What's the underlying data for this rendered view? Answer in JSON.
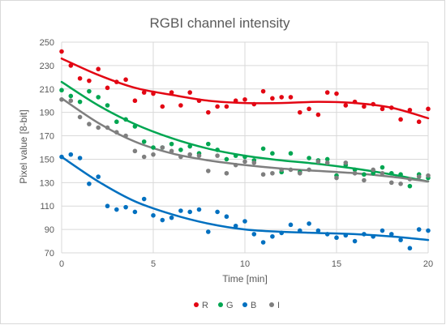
{
  "chart_data": {
    "type": "scatter",
    "title": "RGBI channel intensity",
    "xlabel": "Time [min]",
    "ylabel": "Pixel value [8-bit]",
    "xlim": [
      0,
      20
    ],
    "ylim": [
      70,
      250
    ],
    "xticks": [
      0,
      5,
      10,
      15,
      20
    ],
    "yticks": [
      70,
      90,
      110,
      130,
      150,
      170,
      190,
      210,
      230,
      250
    ],
    "grid": true,
    "legend": "bottom",
    "series": [
      {
        "name": "R",
        "color": "#e30613",
        "points": [
          [
            0,
            242
          ],
          [
            0.5,
            230
          ],
          [
            1,
            219
          ],
          [
            1.5,
            217
          ],
          [
            2,
            227
          ],
          [
            2.5,
            211
          ],
          [
            3,
            216
          ],
          [
            3.5,
            218
          ],
          [
            4,
            200
          ],
          [
            4.5,
            207
          ],
          [
            5,
            206
          ],
          [
            5.5,
            195
          ],
          [
            6,
            207
          ],
          [
            6.5,
            196
          ],
          [
            7,
            207
          ],
          [
            7.5,
            200
          ],
          [
            8,
            190
          ],
          [
            8.5,
            195
          ],
          [
            9,
            195
          ],
          [
            9.5,
            200
          ],
          [
            10,
            201
          ],
          [
            10.5,
            197
          ],
          [
            11,
            208
          ],
          [
            11.5,
            202
          ],
          [
            12,
            203
          ],
          [
            12.5,
            203
          ],
          [
            13,
            190
          ],
          [
            13.5,
            193
          ],
          [
            14,
            188
          ],
          [
            14.5,
            207
          ],
          [
            15,
            206
          ],
          [
            15.5,
            196
          ],
          [
            16,
            199
          ],
          [
            16.5,
            195
          ],
          [
            17,
            197
          ],
          [
            17.5,
            193
          ],
          [
            18,
            194
          ],
          [
            18.5,
            184
          ],
          [
            19,
            192
          ],
          [
            19.5,
            182
          ],
          [
            20,
            193
          ]
        ],
        "trend": [
          [
            0,
            236
          ],
          [
            2,
            222
          ],
          [
            4,
            211
          ],
          [
            6,
            205
          ],
          [
            8,
            200
          ],
          [
            10,
            198
          ],
          [
            12,
            198
          ],
          [
            14,
            199
          ],
          [
            16,
            198
          ],
          [
            18,
            194
          ],
          [
            20,
            185
          ]
        ]
      },
      {
        "name": "G",
        "color": "#00a651",
        "points": [
          [
            0,
            209
          ],
          [
            0.5,
            204
          ],
          [
            1,
            199
          ],
          [
            1.5,
            208
          ],
          [
            2,
            203
          ],
          [
            2.5,
            196
          ],
          [
            3,
            182
          ],
          [
            3.5,
            184
          ],
          [
            4,
            178
          ],
          [
            4.5,
            165
          ],
          [
            5,
            160
          ],
          [
            5.5,
            160
          ],
          [
            6,
            163
          ],
          [
            6.5,
            158
          ],
          [
            7,
            161
          ],
          [
            7.5,
            155
          ],
          [
            8,
            163
          ],
          [
            8.5,
            158
          ],
          [
            9,
            150
          ],
          [
            9.5,
            153
          ],
          [
            10,
            152
          ],
          [
            10.5,
            149
          ],
          [
            11,
            159
          ],
          [
            11.5,
            155
          ],
          [
            12,
            139
          ],
          [
            12.5,
            155
          ],
          [
            13,
            139
          ],
          [
            13.5,
            151
          ],
          [
            14,
            149
          ],
          [
            14.5,
            150
          ],
          [
            15,
            136
          ],
          [
            15.5,
            145
          ],
          [
            16,
            141
          ],
          [
            16.5,
            137
          ],
          [
            17,
            138
          ],
          [
            17.5,
            143
          ],
          [
            18,
            138
          ],
          [
            18.5,
            137
          ],
          [
            19,
            127
          ],
          [
            19.5,
            137
          ],
          [
            20,
            134
          ]
        ],
        "trend": [
          [
            0,
            216
          ],
          [
            2,
            196
          ],
          [
            4,
            180
          ],
          [
            6,
            168
          ],
          [
            8,
            159
          ],
          [
            10,
            153
          ],
          [
            12,
            149
          ],
          [
            14,
            146
          ],
          [
            16,
            142
          ],
          [
            18,
            137
          ],
          [
            20,
            131
          ]
        ]
      },
      {
        "name": "B",
        "color": "#0070c0",
        "points": [
          [
            0,
            152
          ],
          [
            0.5,
            154
          ],
          [
            1,
            151
          ],
          [
            1.5,
            129
          ],
          [
            2,
            135
          ],
          [
            2.5,
            110
          ],
          [
            3,
            107
          ],
          [
            3.5,
            109
          ],
          [
            4,
            105
          ],
          [
            4.5,
            116
          ],
          [
            5,
            102
          ],
          [
            5.5,
            98
          ],
          [
            6,
            100
          ],
          [
            6.5,
            106
          ],
          [
            7,
            105
          ],
          [
            7.5,
            107
          ],
          [
            8,
            88
          ],
          [
            8.5,
            105
          ],
          [
            9,
            101
          ],
          [
            9.5,
            93
          ],
          [
            10,
            97
          ],
          [
            10.5,
            86
          ],
          [
            11,
            79
          ],
          [
            11.5,
            84
          ],
          [
            12,
            87
          ],
          [
            12.5,
            94
          ],
          [
            13,
            89
          ],
          [
            13.5,
            95
          ],
          [
            14,
            89
          ],
          [
            14.5,
            86
          ],
          [
            15,
            83
          ],
          [
            15.5,
            85
          ],
          [
            16,
            80
          ],
          [
            16.5,
            86
          ],
          [
            17,
            84
          ],
          [
            17.5,
            89
          ],
          [
            18,
            86
          ],
          [
            18.5,
            81
          ],
          [
            19,
            74
          ],
          [
            19.5,
            90
          ],
          [
            20,
            89
          ]
        ],
        "trend": [
          [
            0,
            152
          ],
          [
            2,
            131
          ],
          [
            4,
            114
          ],
          [
            6,
            103
          ],
          [
            8,
            95
          ],
          [
            10,
            90
          ],
          [
            12,
            88
          ],
          [
            14,
            87
          ],
          [
            16,
            86
          ],
          [
            18,
            84
          ],
          [
            20,
            81
          ]
        ]
      },
      {
        "name": "I",
        "color": "#7f7f7f",
        "points": [
          [
            0,
            201
          ],
          [
            0.5,
            200
          ],
          [
            1,
            186
          ],
          [
            1.5,
            180
          ],
          [
            2,
            177
          ],
          [
            2.5,
            177
          ],
          [
            3,
            173
          ],
          [
            3.5,
            170
          ],
          [
            4,
            157
          ],
          [
            4.5,
            152
          ],
          [
            5,
            154
          ],
          [
            5.5,
            160
          ],
          [
            6,
            157
          ],
          [
            6.5,
            152
          ],
          [
            7,
            154
          ],
          [
            7.5,
            153
          ],
          [
            8,
            140
          ],
          [
            8.5,
            153
          ],
          [
            9,
            138
          ],
          [
            9.5,
            145
          ],
          [
            10,
            148
          ],
          [
            10.5,
            147
          ],
          [
            11,
            137
          ],
          [
            11.5,
            138
          ],
          [
            12,
            141
          ],
          [
            12.5,
            141
          ],
          [
            13,
            138
          ],
          [
            13.5,
            141
          ],
          [
            14,
            148
          ],
          [
            14.5,
            147
          ],
          [
            15,
            134
          ],
          [
            15.5,
            147
          ],
          [
            16,
            138
          ],
          [
            16.5,
            132
          ],
          [
            17,
            141
          ],
          [
            17.5,
            138
          ],
          [
            18,
            130
          ],
          [
            18.5,
            129
          ],
          [
            19,
            133
          ],
          [
            19.5,
            135
          ],
          [
            20,
            136
          ]
        ],
        "trend": [
          [
            0,
            202
          ],
          [
            2,
            181
          ],
          [
            4,
            165
          ],
          [
            6,
            155
          ],
          [
            8,
            149
          ],
          [
            10,
            145
          ],
          [
            12,
            142
          ],
          [
            14,
            140
          ],
          [
            16,
            138
          ],
          [
            18,
            135
          ],
          [
            20,
            131
          ]
        ]
      }
    ]
  }
}
